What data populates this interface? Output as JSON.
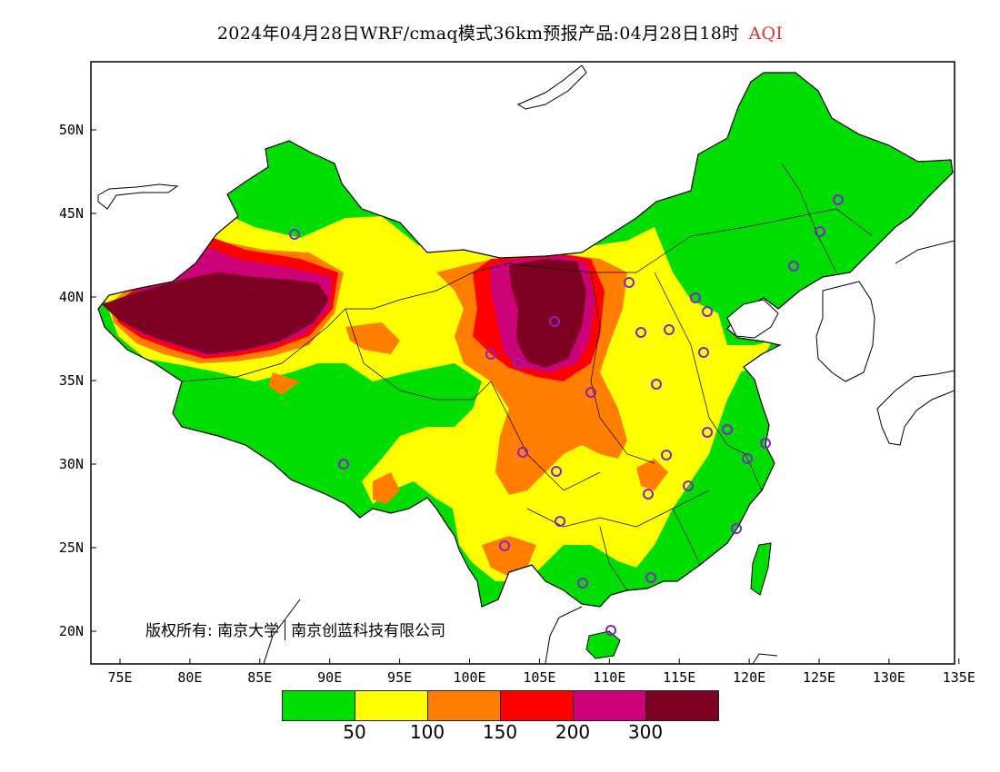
{
  "title": {
    "main": "2024年04月28日WRF/cmaq模式36km预报产品:04月28日18时",
    "variable": "AQI"
  },
  "axes": {
    "lon_ticks": [
      "75E",
      "80E",
      "85E",
      "90E",
      "95E",
      "100E",
      "105E",
      "110E",
      "115E",
      "120E",
      "125E",
      "130E",
      "135E"
    ],
    "lat_ticks": [
      "50N",
      "45N",
      "40N",
      "35N",
      "30N",
      "25N",
      "20N"
    ],
    "lon_range": [
      73,
      135
    ],
    "lat_range": [
      18,
      54
    ]
  },
  "copyright": {
    "prefix": "版权所有:",
    "org1": "南京大学",
    "org2": "南京创蓝科技有限公司"
  },
  "legend": {
    "colors": [
      "#00dd00",
      "#ffff00",
      "#ff7e00",
      "#ff0000",
      "#cc0077",
      "#7e0023"
    ],
    "labels": [
      "50",
      "100",
      "150",
      "200",
      "300"
    ]
  },
  "colors": {
    "good": "#00dd00",
    "moderate": "#ffff00",
    "usg": "#ff7e00",
    "unhealthy": "#ff0000",
    "very_unhealthy": "#cc0077",
    "hazardous": "#7e0023",
    "station_marker": "#8822cc"
  }
}
